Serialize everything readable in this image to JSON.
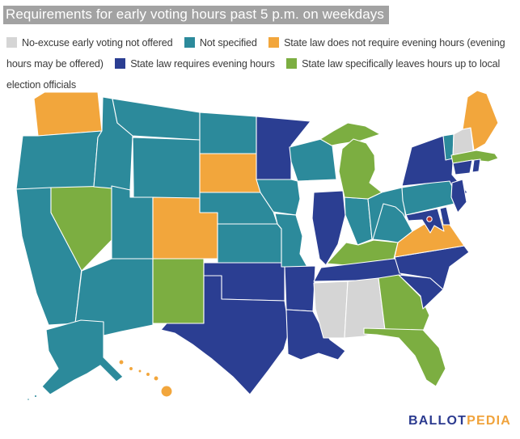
{
  "title": "Requirements for early voting hours past 5 p.m. on weekdays",
  "legend": [
    {
      "key": "none",
      "label": "No-excuse early voting not offered",
      "color": "#d5d5d5"
    },
    {
      "key": "not_specified",
      "label": "Not specified",
      "color": "#2c8a9b"
    },
    {
      "key": "no_evening_required",
      "label": "State law does not require evening hours (evening hours may be offered)",
      "color": "#f2a63c"
    },
    {
      "key": "evening_required",
      "label": "State law requires evening hours",
      "color": "#2b3e92"
    },
    {
      "key": "local_officials",
      "label": "State law specifically leaves hours up to local election officials",
      "color": "#7cae41"
    }
  ],
  "map": {
    "dc_color": "#c0392b",
    "border_color": "#ffffff",
    "states": [
      {
        "abbr": "WA",
        "name": "Washington",
        "category": "no_evening_required"
      },
      {
        "abbr": "OR",
        "name": "Oregon",
        "category": "not_specified"
      },
      {
        "abbr": "CA",
        "name": "California",
        "category": "not_specified"
      },
      {
        "abbr": "NV",
        "name": "Nevada",
        "category": "local_officials"
      },
      {
        "abbr": "ID",
        "name": "Idaho",
        "category": "not_specified"
      },
      {
        "abbr": "MT",
        "name": "Montana",
        "category": "not_specified"
      },
      {
        "abbr": "WY",
        "name": "Wyoming",
        "category": "not_specified"
      },
      {
        "abbr": "UT",
        "name": "Utah",
        "category": "not_specified"
      },
      {
        "abbr": "CO",
        "name": "Colorado",
        "category": "no_evening_required"
      },
      {
        "abbr": "AZ",
        "name": "Arizona",
        "category": "not_specified"
      },
      {
        "abbr": "NM",
        "name": "New Mexico",
        "category": "local_officials"
      },
      {
        "abbr": "ND",
        "name": "North Dakota",
        "category": "not_specified"
      },
      {
        "abbr": "SD",
        "name": "South Dakota",
        "category": "no_evening_required"
      },
      {
        "abbr": "NE",
        "name": "Nebraska",
        "category": "not_specified"
      },
      {
        "abbr": "KS",
        "name": "Kansas",
        "category": "not_specified"
      },
      {
        "abbr": "OK",
        "name": "Oklahoma",
        "category": "evening_required"
      },
      {
        "abbr": "TX",
        "name": "Texas",
        "category": "evening_required"
      },
      {
        "abbr": "MN",
        "name": "Minnesota",
        "category": "evening_required"
      },
      {
        "abbr": "IA",
        "name": "Iowa",
        "category": "not_specified"
      },
      {
        "abbr": "MO",
        "name": "Missouri",
        "category": "not_specified"
      },
      {
        "abbr": "AR",
        "name": "Arkansas",
        "category": "evening_required"
      },
      {
        "abbr": "LA",
        "name": "Louisiana",
        "category": "evening_required"
      },
      {
        "abbr": "WI",
        "name": "Wisconsin",
        "category": "not_specified"
      },
      {
        "abbr": "IL",
        "name": "Illinois",
        "category": "evening_required"
      },
      {
        "abbr": "IN",
        "name": "Indiana",
        "category": "not_specified"
      },
      {
        "abbr": "OH",
        "name": "Ohio",
        "category": "not_specified"
      },
      {
        "abbr": "MI",
        "name": "Michigan",
        "category": "local_officials"
      },
      {
        "abbr": "KY",
        "name": "Kentucky",
        "category": "local_officials"
      },
      {
        "abbr": "TN",
        "name": "Tennessee",
        "category": "evening_required"
      },
      {
        "abbr": "MS",
        "name": "Mississippi",
        "category": "none"
      },
      {
        "abbr": "AL",
        "name": "Alabama",
        "category": "none"
      },
      {
        "abbr": "GA",
        "name": "Georgia",
        "category": "local_officials"
      },
      {
        "abbr": "FL",
        "name": "Florida",
        "category": "local_officials"
      },
      {
        "abbr": "SC",
        "name": "South Carolina",
        "category": "evening_required"
      },
      {
        "abbr": "NC",
        "name": "North Carolina",
        "category": "evening_required"
      },
      {
        "abbr": "VA",
        "name": "Virginia",
        "category": "no_evening_required"
      },
      {
        "abbr": "WV",
        "name": "West Virginia",
        "category": "not_specified"
      },
      {
        "abbr": "PA",
        "name": "Pennsylvania",
        "category": "not_specified"
      },
      {
        "abbr": "NY",
        "name": "New York",
        "category": "evening_required"
      },
      {
        "abbr": "VT",
        "name": "Vermont",
        "category": "not_specified"
      },
      {
        "abbr": "NH",
        "name": "New Hampshire",
        "category": "none"
      },
      {
        "abbr": "ME",
        "name": "Maine",
        "category": "no_evening_required"
      },
      {
        "abbr": "MA",
        "name": "Massachusetts",
        "category": "local_officials"
      },
      {
        "abbr": "CT",
        "name": "Connecticut",
        "category": "evening_required"
      },
      {
        "abbr": "RI",
        "name": "Rhode Island",
        "category": "evening_required"
      },
      {
        "abbr": "NJ",
        "name": "New Jersey",
        "category": "evening_required"
      },
      {
        "abbr": "DE",
        "name": "Delaware",
        "category": "evening_required"
      },
      {
        "abbr": "MD",
        "name": "Maryland",
        "category": "evening_required"
      },
      {
        "abbr": "AK",
        "name": "Alaska",
        "category": "not_specified"
      },
      {
        "abbr": "HI",
        "name": "Hawaii",
        "category": "no_evening_required"
      },
      {
        "abbr": "DC",
        "name": "Washington, D.C.",
        "category": "dc"
      }
    ]
  },
  "logo": {
    "ballot": "BALLOT",
    "pedia": "PEDIA",
    "ballot_color": "#2b3a8f",
    "pedia_color": "#f0a33c"
  }
}
